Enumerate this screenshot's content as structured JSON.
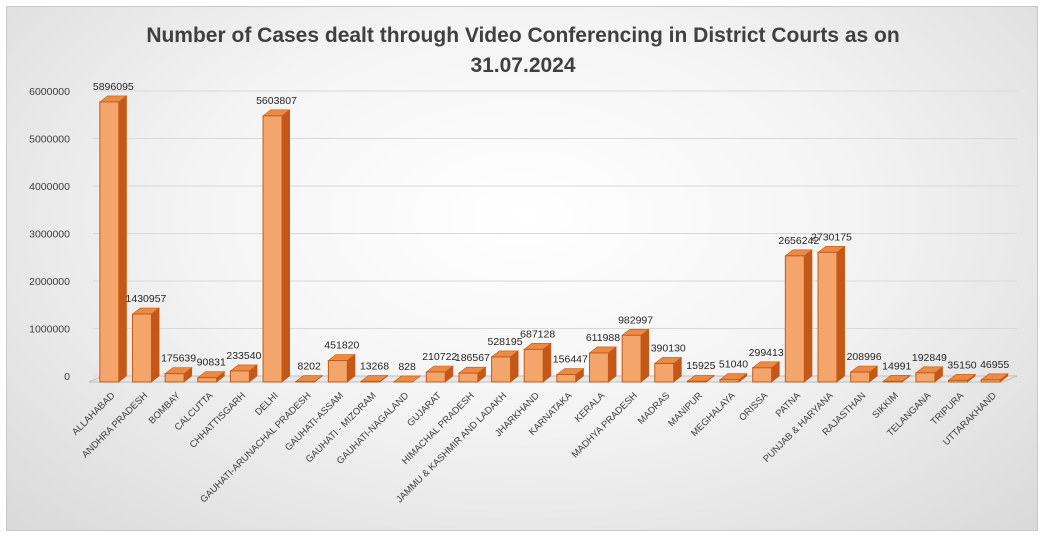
{
  "chart_data": {
    "type": "bar",
    "title_line1": "Number of Cases dealt through Video Conferencing in District Courts as on",
    "title_line2": "31.07.2024",
    "xlabel": "",
    "ylabel": "",
    "ylim": [
      0,
      6000000
    ],
    "yticks": [
      0,
      1000000,
      2000000,
      3000000,
      4000000,
      5000000,
      6000000
    ],
    "grid": true,
    "legend": "none",
    "style": "3d-column",
    "colors": {
      "bar_front": "#f4a56b",
      "bar_side": "#c4571a",
      "bar_top": "#e98a47",
      "edge": "#c55a11",
      "grid": "#d9d9d9",
      "floor": "#bfbfbf"
    },
    "categories": [
      "ALLAHABAD",
      "ANDHRA PRADESH",
      "BOMBAY",
      "CALCUTTA",
      "CHHATTISGARH",
      "DELHI",
      "GAUHATI-ARUNACHAL PRADESH",
      "GAUHATI-ASSAM",
      "GAUHATI - MIZORAM",
      "GAUHATI-NAGALAND",
      "GUJARAT",
      "HIMACHAL PRADESH",
      "JAMMU & KASHMIR AND LADAKH",
      "JHARKHAND",
      "KARNATAKA",
      "KERALA",
      "MADHYA PRADESH",
      "MADRAS",
      "MANIPUR",
      "MEGHALAYA",
      "ORISSA",
      "PATNA",
      "PUNJAB & HARYANA",
      "RAJASTHAN",
      "SIKKIM",
      "TELANGANA",
      "TRIPURA",
      "UTTARAKHAND"
    ],
    "values": [
      5896095,
      1430957,
      175639,
      90831,
      233540,
      5603807,
      8202,
      451820,
      13268,
      828,
      210722,
      186567,
      528195,
      687128,
      156447,
      611988,
      982997,
      390130,
      15925,
      51040,
      299413,
      2656242,
      2730175,
      208996,
      14991,
      192849,
      35150,
      46955
    ],
    "value_labels": [
      "5896095",
      "1430957",
      "175639",
      "90831",
      "233540",
      "5603807",
      "8202",
      "451820",
      "13268",
      "828",
      "210722",
      "186567",
      "528195",
      "687128",
      "156447",
      "611988",
      "982997",
      "390130",
      "15925",
      "51040",
      "299413",
      "2656242",
      "2730175",
      "208996",
      "14991",
      "192849",
      "35150",
      "46955"
    ]
  }
}
